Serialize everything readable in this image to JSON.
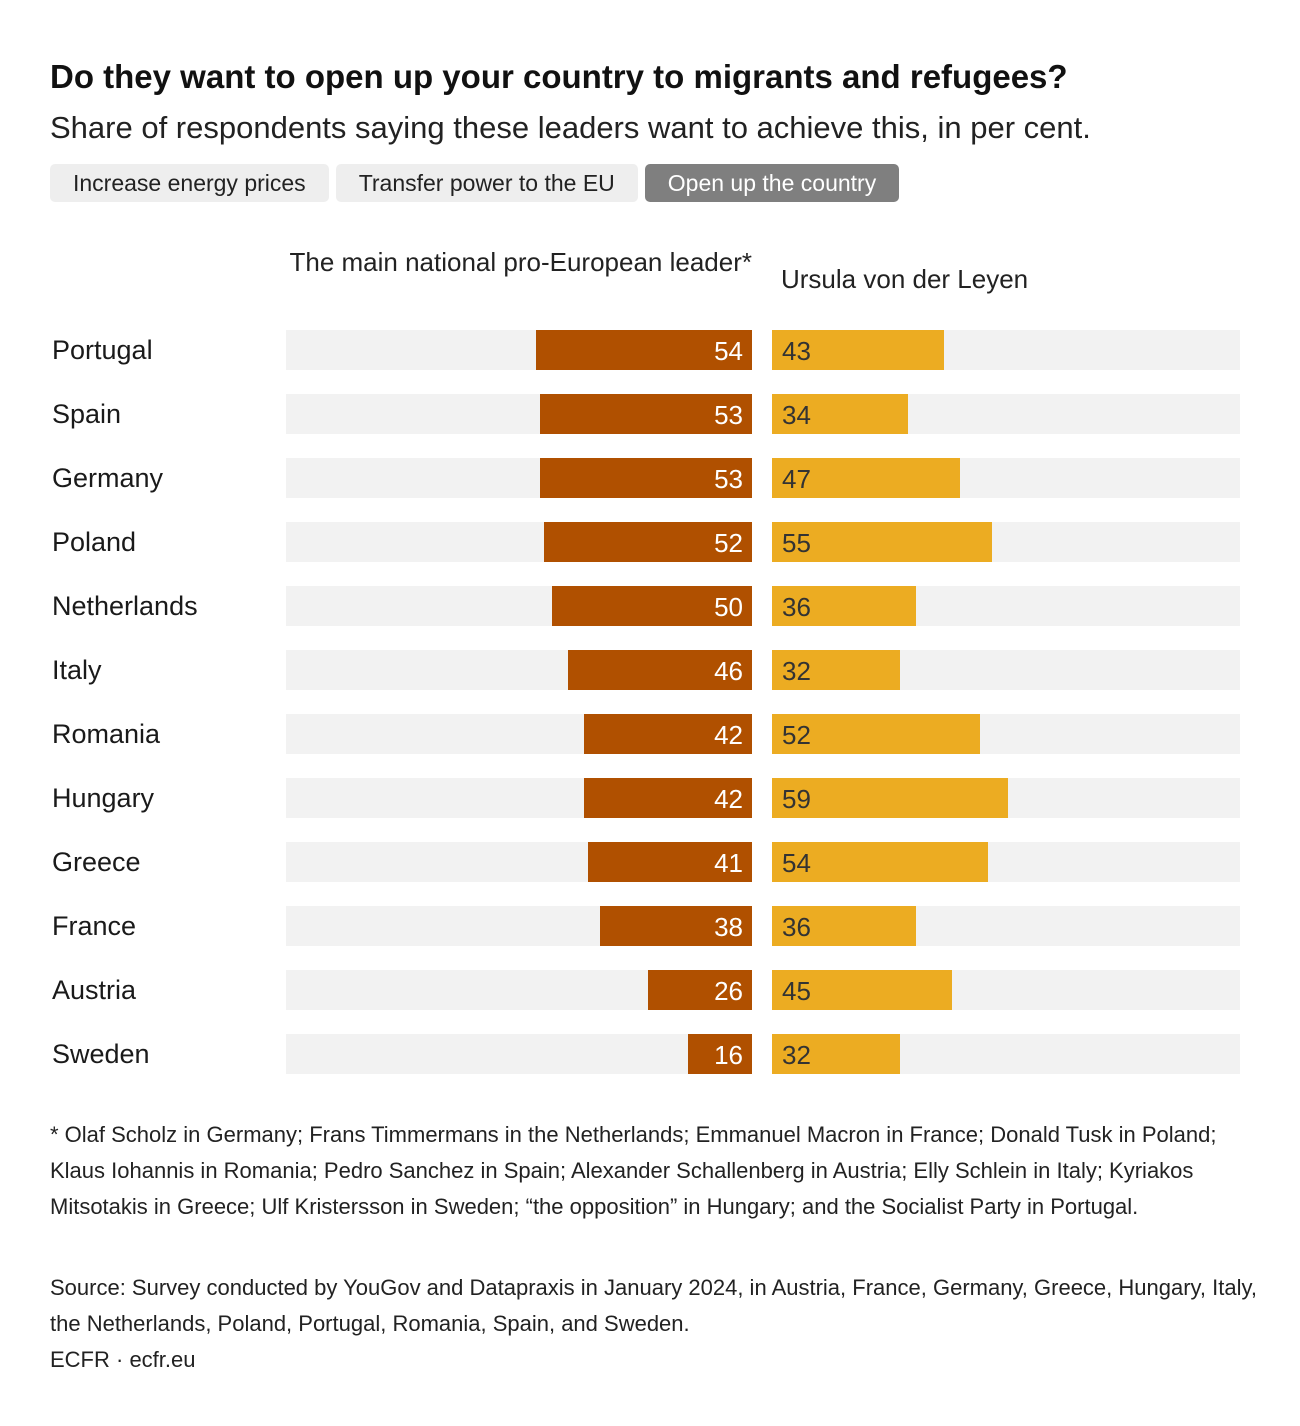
{
  "header": {
    "title": "Do they want to open up your country to migrants and refugees?",
    "subtitle": "Share of respondents saying these leaders want to achieve this, in per cent."
  },
  "tabs": [
    {
      "label": "Increase energy prices"
    },
    {
      "label": "Transfer power to the EU"
    },
    {
      "label": "Open up the country"
    }
  ],
  "colors": {
    "national": "#b05000",
    "vdl": "#ecac22",
    "track": "#f2f2f2",
    "tab_active": "#7f7f7f",
    "tab_inactive": "#eeeeee"
  },
  "chart_data": {
    "type": "bar",
    "title": "Do they want to open up your country to migrants and refugees?",
    "subtitle": "Share of respondents saying these leaders want to achieve this, in per cent.",
    "categories": [
      "Portugal",
      "Spain",
      "Germany",
      "Poland",
      "Netherlands",
      "Italy",
      "Romania",
      "Hungary",
      "Greece",
      "France",
      "Austria",
      "Sweden"
    ],
    "series": [
      {
        "name": "The main national pro-European leader*",
        "values": [
          54,
          53,
          53,
          52,
          50,
          46,
          42,
          42,
          41,
          38,
          26,
          16
        ]
      },
      {
        "name": "Ursula von der Leyen",
        "values": [
          43,
          34,
          47,
          55,
          36,
          32,
          52,
          59,
          54,
          36,
          45,
          32
        ]
      }
    ],
    "xlim": [
      0,
      100
    ],
    "xlabel": "",
    "ylabel": ""
  },
  "footnote": "* Olaf Scholz in Germany; Frans Timmermans in the Netherlands; Emmanuel Macron in France; Donald Tusk in Poland; Klaus Iohannis in Romania; Pedro Sanchez in Spain; Alexander Schallenberg in Austria; Elly Schlein in Italy; Kyriakos Mitsotakis in Greece; Ulf Kristersson in Sweden; “the opposition” in Hungary; and the Socialist Party in Portugal.",
  "source": "Source: Survey conducted by YouGov and Datapraxis in January 2024, in Austria, France, Germany, Greece, Hungary, Italy, the Netherlands, Poland, Portugal, Romania, Spain, and Sweden.",
  "credit": "ECFR · ecfr.eu"
}
